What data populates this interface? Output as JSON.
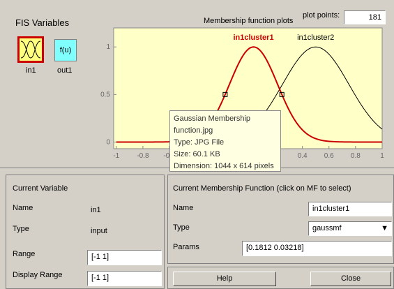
{
  "fis_variables": {
    "title": "FIS Variables",
    "variables": [
      {
        "name": "in1"
      },
      {
        "name": "out1",
        "icon_text": "f(u)"
      }
    ]
  },
  "plot": {
    "title": "Membership function plots",
    "plot_points_label": "plot points:",
    "plot_points": 181,
    "xlim": [
      -1.02,
      1
    ],
    "ylim": [
      -0.07,
      1.2
    ],
    "xticks": [
      -1,
      -0.8,
      -0.6,
      -0.4,
      -0.2,
      0,
      0.2,
      0.4,
      0.6,
      0.8,
      1
    ],
    "yticks": [
      0,
      0.5,
      1
    ],
    "curves": [
      {
        "name": "in1cluster1",
        "color": "#cc0000",
        "selected": true,
        "params": [
          0.1812,
          0.03218
        ]
      },
      {
        "name": "in1cluster2",
        "color": "#000000",
        "selected": false,
        "params": [
          0.25,
          0.5
        ]
      }
    ]
  },
  "tooltip": {
    "lines": [
      "Gaussian Membership",
      "function.jpg",
      "Type: JPG File",
      "Size: 60.1 KB",
      "Dimension: 1044 x 614 pixels"
    ]
  },
  "current_variable": {
    "title": "Current Variable",
    "fields": [
      {
        "label": "Name",
        "value": "in1"
      },
      {
        "label": "Type",
        "value": "input"
      },
      {
        "label": "Range",
        "value": "[-1 1]"
      },
      {
        "label": "Display Range",
        "value": "[-1 1]"
      }
    ]
  },
  "current_mf": {
    "title": "Current Membership Function (click on MF to select)",
    "name_label": "Name",
    "name": "in1cluster1",
    "type_label": "Type",
    "type": "gaussmf",
    "params_label": "Params",
    "params": "[0.1812 0.03218]"
  },
  "buttons": [
    "Help",
    "Close"
  ]
}
